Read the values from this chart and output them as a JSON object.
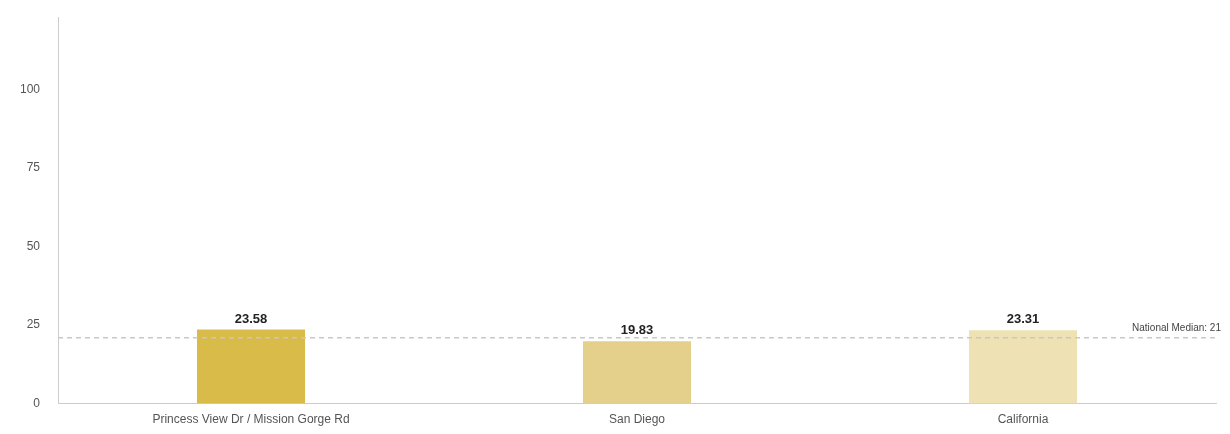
{
  "chart_data": {
    "type": "bar",
    "categories": [
      "Princess View Dr / Mission Gorge Rd",
      "San Diego",
      "California"
    ],
    "values": [
      23.58,
      19.83,
      23.31
    ],
    "colors": [
      "#d8bb48",
      "#e4d08a",
      "#eee2b4"
    ],
    "ylim": [
      0,
      123
    ],
    "yticks": [
      0,
      25,
      50,
      75,
      100
    ],
    "grid": false,
    "legend": false,
    "data_labels": true,
    "ref_lines": [
      {
        "axis": "y",
        "value": 21,
        "label": "National Median: 21",
        "color": "#c8c8c8",
        "line_style": "dashed"
      }
    ]
  }
}
